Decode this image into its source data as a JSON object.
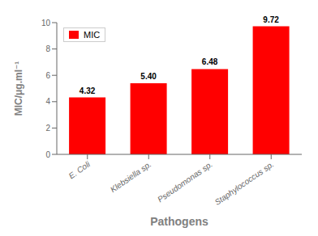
{
  "chart_data": {
    "type": "bar",
    "categories": [
      "E. Coli",
      "Klebsiella sp.",
      "Pseudomonas sp.",
      "Staphylococcus sp."
    ],
    "series": [
      {
        "name": "MIC",
        "color": "#FF0000",
        "values": [
          4.32,
          5.4,
          6.48,
          9.72
        ],
        "value_labels": [
          "4.32",
          "5.40",
          "6.48",
          "9.72"
        ]
      }
    ],
    "xlabel": "Pathogens",
    "ylabel": "MIC/μg.ml⁻¹",
    "ylim": [
      0,
      10
    ],
    "yticks": [
      0,
      2,
      4,
      6,
      8,
      10
    ],
    "data_labels": true,
    "legend": "upper left",
    "grid": false
  }
}
